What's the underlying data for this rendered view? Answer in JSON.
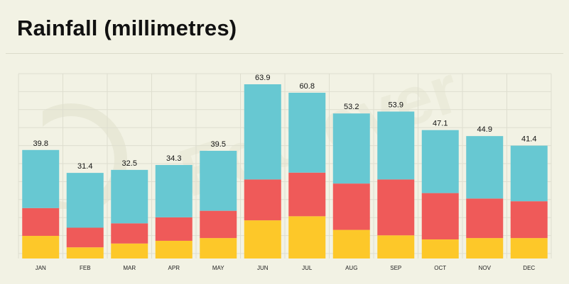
{
  "page": {
    "title": "Rainfall (millimetres)"
  },
  "colors": {
    "background": "#f2f2e4",
    "grid": "#dedecf",
    "bottom_segment": "#fdc829",
    "middle_segment": "#ef5a59",
    "top_segment": "#67c8d2"
  },
  "chart_data": {
    "type": "bar",
    "stacked": true,
    "categories": [
      "JAN",
      "FEB",
      "MAR",
      "APR",
      "MAY",
      "JUN",
      "JUL",
      "AUG",
      "SEP",
      "OCT",
      "NOV",
      "DEC"
    ],
    "totals": [
      39.8,
      31.4,
      32.5,
      34.3,
      39.5,
      63.9,
      60.8,
      53.2,
      53.9,
      47.1,
      44.9,
      41.4
    ],
    "series": [
      {
        "values": [
          8.3,
          4.1,
          5.5,
          6.5,
          7.5,
          14.0,
          15.5,
          10.5,
          8.5,
          7.0,
          7.5,
          7.5
        ]
      },
      {
        "values": [
          10.2,
          7.2,
          7.4,
          8.6,
          10.0,
          15.0,
          16.0,
          17.0,
          20.5,
          17.0,
          14.5,
          13.5
        ]
      },
      {
        "values": [
          21.3,
          20.1,
          19.6,
          19.2,
          22.0,
          34.9,
          29.3,
          25.7,
          24.9,
          23.1,
          22.9,
          20.4
        ]
      }
    ],
    "ylim": [
      0,
      66
    ],
    "grid": true,
    "legend": "none",
    "data_labels": "totals above bars"
  }
}
